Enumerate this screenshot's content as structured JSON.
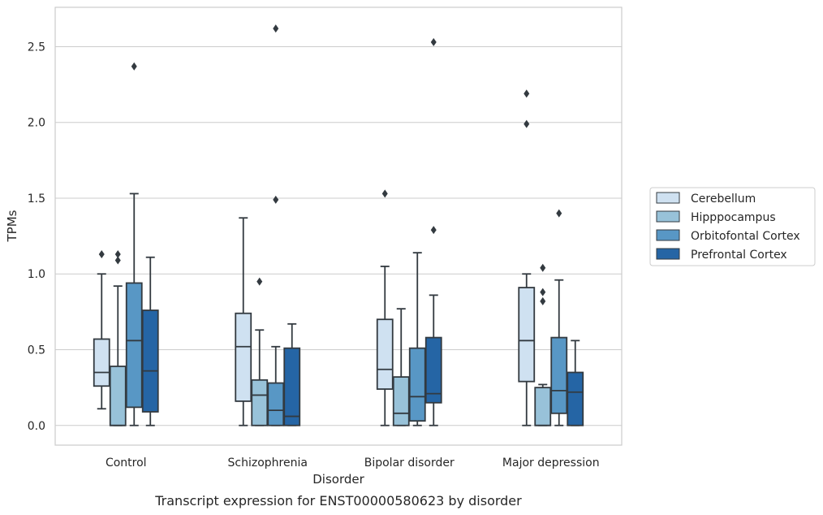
{
  "chart_data": {
    "type": "boxplot",
    "caption": "Transcript expression for ENST00000580623 by disorder",
    "xlabel": "Disorder",
    "ylabel": "TPMs",
    "ylim": [
      -0.13,
      2.76
    ],
    "yticks": [
      0.0,
      0.5,
      1.0,
      1.5,
      2.0,
      2.5
    ],
    "ytick_labels": [
      "0.0",
      "0.5",
      "1.0",
      "1.5",
      "2.0",
      "2.5"
    ],
    "grid": "horizontal",
    "legend_position": "right",
    "categories": [
      "Control",
      "Schizophrenia",
      "Bipolar disorder",
      "Major depression"
    ],
    "series": [
      {
        "name": "Cerebellum",
        "color": "#cfe1f1",
        "boxes": [
          {
            "whisker_low": 0.11,
            "q1": 0.26,
            "median": 0.35,
            "q3": 0.57,
            "whisker_high": 1.0,
            "outliers": [
              1.13
            ]
          },
          {
            "whisker_low": 0.0,
            "q1": 0.16,
            "median": 0.52,
            "q3": 0.74,
            "whisker_high": 1.37,
            "outliers": []
          },
          {
            "whisker_low": 0.0,
            "q1": 0.24,
            "median": 0.37,
            "q3": 0.7,
            "whisker_high": 1.05,
            "outliers": [
              1.53
            ]
          },
          {
            "whisker_low": 0.0,
            "q1": 0.29,
            "median": 0.56,
            "q3": 0.91,
            "whisker_high": 1.0,
            "outliers": [
              1.99,
              2.19
            ]
          }
        ]
      },
      {
        "name": "Hipppocampus",
        "color": "#98c2d9",
        "boxes": [
          {
            "whisker_low": 0.0,
            "q1": 0.0,
            "median": 0.0,
            "q3": 0.39,
            "whisker_high": 0.92,
            "outliers": [
              1.09,
              1.13
            ]
          },
          {
            "whisker_low": 0.0,
            "q1": 0.0,
            "median": 0.2,
            "q3": 0.3,
            "whisker_high": 0.63,
            "outliers": [
              0.95
            ]
          },
          {
            "whisker_low": 0.0,
            "q1": 0.0,
            "median": 0.08,
            "q3": 0.32,
            "whisker_high": 0.77,
            "outliers": []
          },
          {
            "whisker_low": 0.0,
            "q1": 0.0,
            "median": 0.0,
            "q3": 0.25,
            "whisker_high": 0.27,
            "outliers": [
              0.82,
              0.88,
              1.04
            ]
          }
        ]
      },
      {
        "name": "Orbitofontal Cortex",
        "color": "#5897c5",
        "boxes": [
          {
            "whisker_low": 0.0,
            "q1": 0.12,
            "median": 0.56,
            "q3": 0.94,
            "whisker_high": 1.53,
            "outliers": [
              2.37
            ]
          },
          {
            "whisker_low": 0.0,
            "q1": 0.0,
            "median": 0.1,
            "q3": 0.28,
            "whisker_high": 0.52,
            "outliers": [
              1.49,
              2.62
            ]
          },
          {
            "whisker_low": 0.0,
            "q1": 0.03,
            "median": 0.19,
            "q3": 0.51,
            "whisker_high": 1.14,
            "outliers": []
          },
          {
            "whisker_low": 0.0,
            "q1": 0.08,
            "median": 0.23,
            "q3": 0.58,
            "whisker_high": 0.96,
            "outliers": [
              1.4
            ]
          }
        ]
      },
      {
        "name": "Prefrontal Cortex",
        "color": "#2565a5",
        "boxes": [
          {
            "whisker_low": 0.0,
            "q1": 0.09,
            "median": 0.36,
            "q3": 0.76,
            "whisker_high": 1.11,
            "outliers": []
          },
          {
            "whisker_low": 0.0,
            "q1": 0.0,
            "median": 0.06,
            "q3": 0.51,
            "whisker_high": 0.67,
            "outliers": []
          },
          {
            "whisker_low": 0.0,
            "q1": 0.15,
            "median": 0.21,
            "q3": 0.58,
            "whisker_high": 0.86,
            "outliers": [
              1.29,
              2.53
            ]
          },
          {
            "whisker_low": 0.0,
            "q1": 0.0,
            "median": 0.22,
            "q3": 0.35,
            "whisker_high": 0.56,
            "outliers": []
          }
        ]
      }
    ]
  }
}
